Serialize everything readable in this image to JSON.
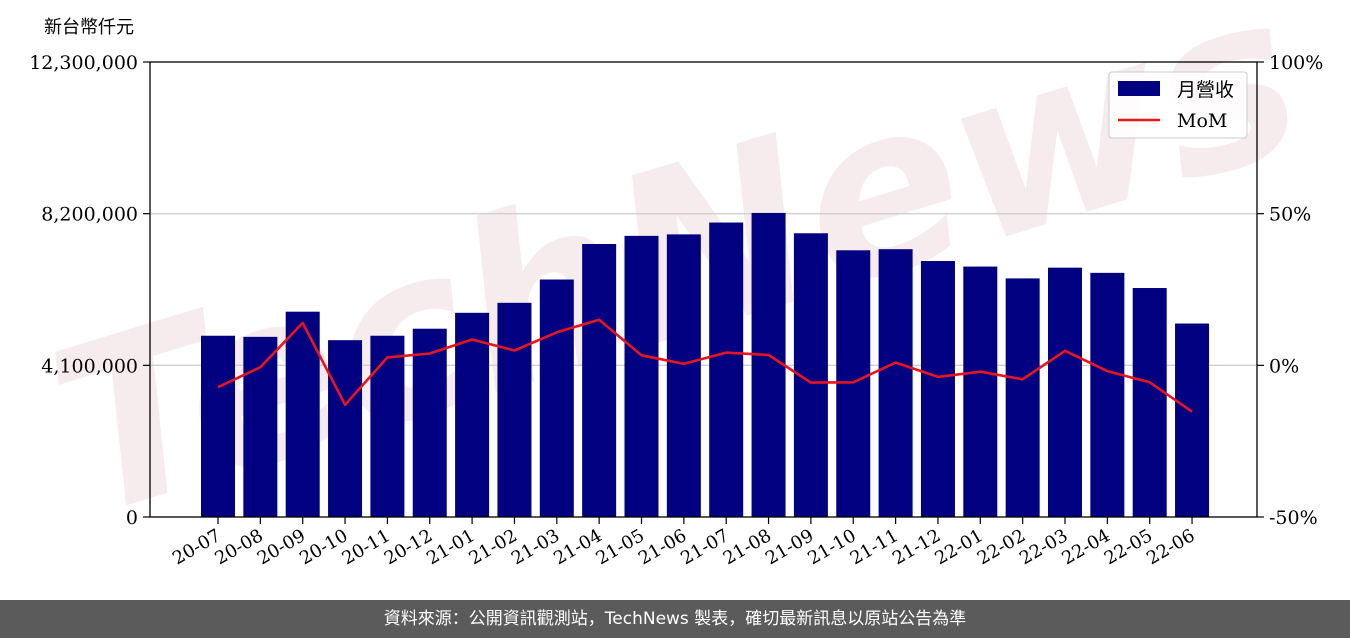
{
  "watermark": "TechNews",
  "chart_data": {
    "type": "bar",
    "y_unit_label": "新台幣仟元",
    "categories": [
      "20-07",
      "20-08",
      "20-09",
      "20-10",
      "20-11",
      "20-12",
      "21-01",
      "21-02",
      "21-03",
      "21-04",
      "21-05",
      "21-06",
      "21-07",
      "21-08",
      "21-09",
      "21-10",
      "21-11",
      "21-12",
      "22-01",
      "22-02",
      "22-03",
      "22-04",
      "22-05",
      "22-06"
    ],
    "ylim": [
      0,
      12300000
    ],
    "y_ticks": [
      0,
      4100000,
      8200000,
      12300000
    ],
    "y_tick_labels": [
      "0",
      "4,100,000",
      "8,200,000",
      "12,300,000"
    ],
    "y2lim": [
      -50,
      100
    ],
    "y2_ticks": [
      -50,
      0,
      50,
      100
    ],
    "y2_tick_labels": [
      "-50%",
      "0%",
      "50%",
      "100%"
    ],
    "grid": "horizontal",
    "legend_position": "top-right",
    "series": [
      {
        "name": "月營收",
        "type": "bar",
        "axis": "left",
        "color": "#000080",
        "values": [
          4900000,
          4870000,
          5550000,
          4780000,
          4900000,
          5090000,
          5520000,
          5790000,
          6420000,
          7380000,
          7600000,
          7640000,
          7960000,
          8220000,
          7670000,
          7210000,
          7240000,
          6920000,
          6770000,
          6450000,
          6740000,
          6600000,
          6190000,
          5230000
        ]
      },
      {
        "name": "MoM",
        "type": "line",
        "axis": "right",
        "color": "#e8141e",
        "values": [
          -7.2,
          -0.6,
          14.0,
          -13.0,
          2.6,
          3.9,
          8.5,
          4.9,
          10.9,
          15.0,
          3.3,
          0.5,
          4.2,
          3.4,
          -5.7,
          -5.6,
          0.9,
          -3.8,
          -2.1,
          -4.6,
          4.8,
          -1.9,
          -5.6,
          -15.3
        ]
      }
    ]
  },
  "footer": {
    "source_text": "資料來源：公開資訊觀測站，TechNews 製表，確切最新訊息以原站公告為準"
  }
}
